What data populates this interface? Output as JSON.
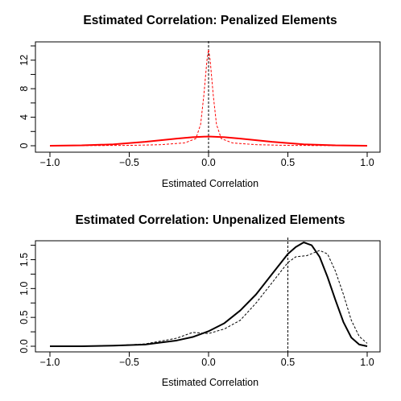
{
  "chart_data": [
    {
      "type": "line",
      "title": "Estimated Correlation: Penalized Elements",
      "xlabel": "Estimated Correlation",
      "ylabel": "",
      "xlim": [
        -1.0,
        1.0
      ],
      "ylim": [
        0,
        14
      ],
      "xticks": [
        -1.0,
        -0.5,
        0.0,
        0.5,
        1.0
      ],
      "xtick_labels": [
        "−1.0",
        "−0.5",
        "0.0",
        "0.5",
        "1.0"
      ],
      "yticks": [
        0,
        2,
        4,
        6,
        8,
        10,
        12,
        14
      ],
      "ytick_labels": [
        "0",
        "",
        "4",
        "",
        "8",
        "",
        "12",
        ""
      ],
      "reference_line": {
        "x": 0.0,
        "style": "dashed",
        "color": "#000000"
      },
      "series": [
        {
          "style": "solid",
          "color": "#ff0000",
          "points": [
            [
              -1.0,
              0.0
            ],
            [
              -0.8,
              0.05
            ],
            [
              -0.6,
              0.2
            ],
            [
              -0.4,
              0.55
            ],
            [
              -0.2,
              1.0
            ],
            [
              -0.1,
              1.2
            ],
            [
              0.0,
              1.3
            ],
            [
              0.1,
              1.2
            ],
            [
              0.2,
              1.0
            ],
            [
              0.4,
              0.55
            ],
            [
              0.6,
              0.2
            ],
            [
              0.8,
              0.05
            ],
            [
              1.0,
              0.0
            ]
          ]
        },
        {
          "style": "dashed",
          "color": "#ff0000",
          "points": [
            [
              -1.0,
              0.0
            ],
            [
              -0.5,
              0.05
            ],
            [
              -0.3,
              0.15
            ],
            [
              -0.15,
              0.4
            ],
            [
              -0.08,
              1.0
            ],
            [
              -0.05,
              3.0
            ],
            [
              -0.03,
              7.0
            ],
            [
              -0.01,
              12.0
            ],
            [
              0.0,
              13.5
            ],
            [
              0.01,
              12.0
            ],
            [
              0.03,
              7.0
            ],
            [
              0.05,
              3.0
            ],
            [
              0.08,
              1.0
            ],
            [
              0.15,
              0.4
            ],
            [
              0.3,
              0.15
            ],
            [
              0.5,
              0.05
            ],
            [
              1.0,
              0.0
            ]
          ]
        }
      ]
    },
    {
      "type": "line",
      "title": "Estimated Correlation: Unpenalized Elements",
      "xlabel": "Estimated Correlation",
      "ylabel": "",
      "xlim": [
        -1.0,
        1.0
      ],
      "ylim": [
        0,
        1.8
      ],
      "xticks": [
        -1.0,
        -0.5,
        0.0,
        0.5,
        1.0
      ],
      "xtick_labels": [
        "−1.0",
        "−0.5",
        "0.0",
        "0.5",
        "1.0"
      ],
      "yticks": [
        0.0,
        0.25,
        0.5,
        0.75,
        1.0,
        1.25,
        1.5,
        1.75
      ],
      "ytick_labels": [
        "0.0",
        "",
        "0.5",
        "",
        "1.0",
        "",
        "1.5",
        ""
      ],
      "reference_line": {
        "x": 0.5,
        "style": "dashed",
        "color": "#000000"
      },
      "series": [
        {
          "style": "solid",
          "color": "#000000",
          "points": [
            [
              -1.0,
              0.0
            ],
            [
              -0.8,
              0.0
            ],
            [
              -0.6,
              0.01
            ],
            [
              -0.4,
              0.03
            ],
            [
              -0.2,
              0.1
            ],
            [
              -0.1,
              0.16
            ],
            [
              0.0,
              0.26
            ],
            [
              0.1,
              0.4
            ],
            [
              0.2,
              0.62
            ],
            [
              0.3,
              0.9
            ],
            [
              0.4,
              1.25
            ],
            [
              0.5,
              1.6
            ],
            [
              0.55,
              1.72
            ],
            [
              0.6,
              1.8
            ],
            [
              0.65,
              1.75
            ],
            [
              0.7,
              1.55
            ],
            [
              0.75,
              1.2
            ],
            [
              0.8,
              0.8
            ],
            [
              0.85,
              0.42
            ],
            [
              0.9,
              0.15
            ],
            [
              0.95,
              0.03
            ],
            [
              1.0,
              0.0
            ]
          ]
        },
        {
          "style": "dashed",
          "color": "#000000",
          "points": [
            [
              -1.0,
              0.0
            ],
            [
              -0.6,
              0.01
            ],
            [
              -0.4,
              0.04
            ],
            [
              -0.2,
              0.14
            ],
            [
              -0.1,
              0.24
            ],
            [
              0.0,
              0.22
            ],
            [
              0.1,
              0.3
            ],
            [
              0.2,
              0.45
            ],
            [
              0.3,
              0.75
            ],
            [
              0.4,
              1.1
            ],
            [
              0.5,
              1.45
            ],
            [
              0.55,
              1.55
            ],
            [
              0.62,
              1.57
            ],
            [
              0.7,
              1.66
            ],
            [
              0.75,
              1.6
            ],
            [
              0.8,
              1.3
            ],
            [
              0.85,
              0.9
            ],
            [
              0.9,
              0.45
            ],
            [
              0.95,
              0.17
            ],
            [
              1.0,
              0.05
            ]
          ]
        }
      ]
    }
  ]
}
